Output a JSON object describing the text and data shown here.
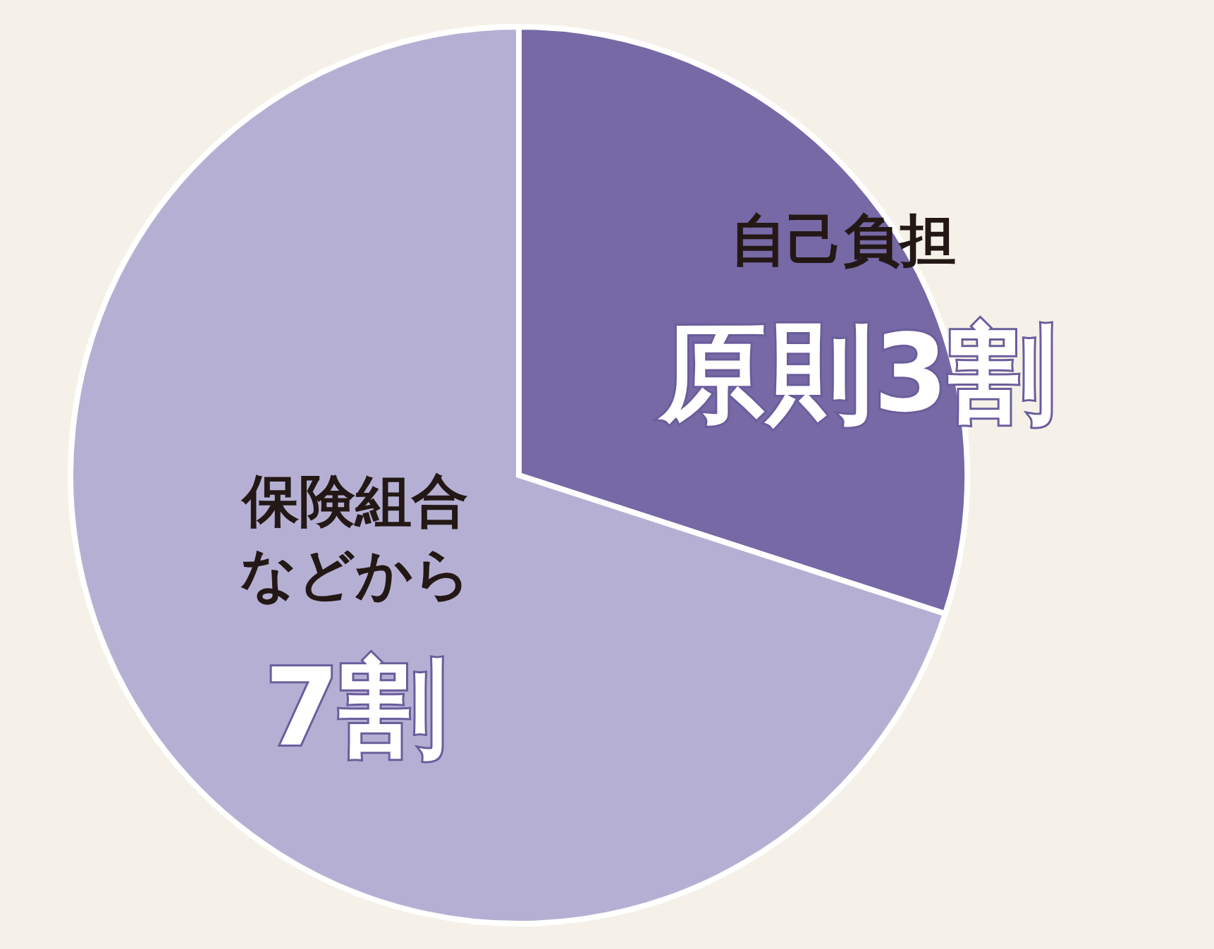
{
  "chart_data": {
    "type": "pie",
    "categories": [
      "自己負担",
      "保険組合などから"
    ],
    "values": [
      3,
      7
    ],
    "colors": [
      "#7669a6",
      "#b5b0d3"
    ],
    "value_labels": [
      "原則3割",
      "7割"
    ]
  }
}
